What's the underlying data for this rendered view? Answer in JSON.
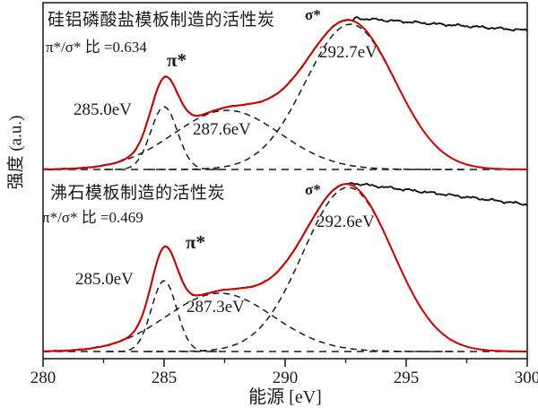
{
  "axes": {
    "x_label": "能源 [eV]",
    "y_label": "强度 (a.u.)",
    "x_range": [
      280,
      300
    ],
    "x_major_ticks": [
      280,
      285,
      290,
      295,
      300
    ],
    "x_minor_ticks": [
      282.5,
      287.5,
      292.5,
      297.5
    ]
  },
  "colors": {
    "fit_line": "#d40000",
    "experimental_line": "#151515",
    "component_line": "#1a1a1a",
    "frame": "#222222"
  },
  "chart_data": {
    "type": "line",
    "title": "",
    "xlabel": "能源 [eV]",
    "ylabel": "强度 (a.u.)",
    "xlim": [
      280,
      300
    ],
    "x_ticks": [
      280,
      285,
      290,
      295,
      300
    ],
    "x_minor_ticks": [
      282.5,
      287.5,
      292.5,
      297.5
    ],
    "grid": false,
    "legend": "none",
    "series_kinds": [
      "experimental",
      "fit",
      "gaussian_components",
      "baseline"
    ],
    "spectra": [
      {
        "title": "硅铝磷酸盐模板制造的活性炭",
        "ratio_label": "π*/σ* 比 =0.634",
        "pi_sigma_ratio": 0.634,
        "pi_label": "π*",
        "sigma_label": "σ*",
        "peaks": [
          {
            "label": "285.0eV",
            "center_eV": 285.0,
            "assignment": "π*",
            "rel_amplitude": 0.432,
            "sigma_eV": 0.55
          },
          {
            "label": "287.6eV",
            "center_eV": 287.6,
            "assignment": "",
            "rel_amplitude": 0.407,
            "sigma_eV": 2.2
          },
          {
            "label": "292.7eV",
            "center_eV": 292.7,
            "assignment": "σ*",
            "rel_amplitude": 1.0,
            "sigma_eV": 1.85
          }
        ],
        "edge_step": {
          "onset_eV": 292.8,
          "start_rel": 1.043,
          "end_rel": 0.957
        }
      },
      {
        "title": "沸石模板制造的活性炭",
        "ratio_label": "π*/σ* 比 =0.469",
        "pi_sigma_ratio": 0.469,
        "pi_label": "π*",
        "sigma_label": "σ*",
        "peaks": [
          {
            "label": "285.0eV",
            "center_eV": 285.0,
            "assignment": "π*",
            "rel_amplitude": 0.432,
            "sigma_eV": 0.52
          },
          {
            "label": "287.3eV",
            "center_eV": 287.3,
            "assignment": "",
            "rel_amplitude": 0.355,
            "sigma_eV": 2.2
          },
          {
            "label": "292.6eV",
            "center_eV": 292.6,
            "assignment": "σ*",
            "rel_amplitude": 1.0,
            "sigma_eV": 1.85
          }
        ],
        "edge_step": {
          "onset_eV": 292.7,
          "start_rel": 1.027,
          "end_rel": 0.896
        }
      }
    ]
  }
}
